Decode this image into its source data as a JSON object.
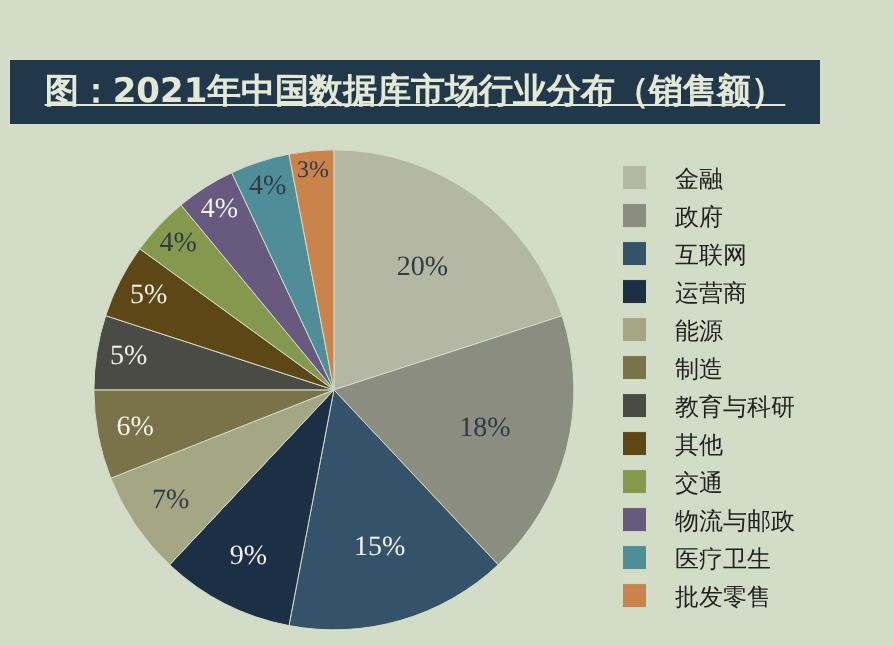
{
  "chart_data": {
    "type": "pie",
    "title": "图：2021年中国数据库市场行业分布（销售额）",
    "categories": [
      "金融",
      "政府",
      "互联网",
      "运营商",
      "能源",
      "制造",
      "教育与科研",
      "其他",
      "交通",
      "物流与邮政",
      "医疗卫生",
      "批发零售"
    ],
    "values": [
      20,
      18,
      15,
      9,
      7,
      6,
      5,
      5,
      4,
      4,
      4,
      3
    ],
    "value_labels": [
      "20%",
      "18%",
      "15%",
      "9%",
      "7%",
      "6%",
      "5%",
      "5%",
      "4%",
      "4%",
      "4%",
      "3%"
    ],
    "colors": [
      "#b3b7a4",
      "#8a8d80",
      "#34536b",
      "#1b2f45",
      "#a5a683",
      "#7a7349",
      "#4a4b44",
      "#5d4716",
      "#85994e",
      "#675a7e",
      "#4f8e98",
      "#c9834b"
    ],
    "legend": "right"
  }
}
